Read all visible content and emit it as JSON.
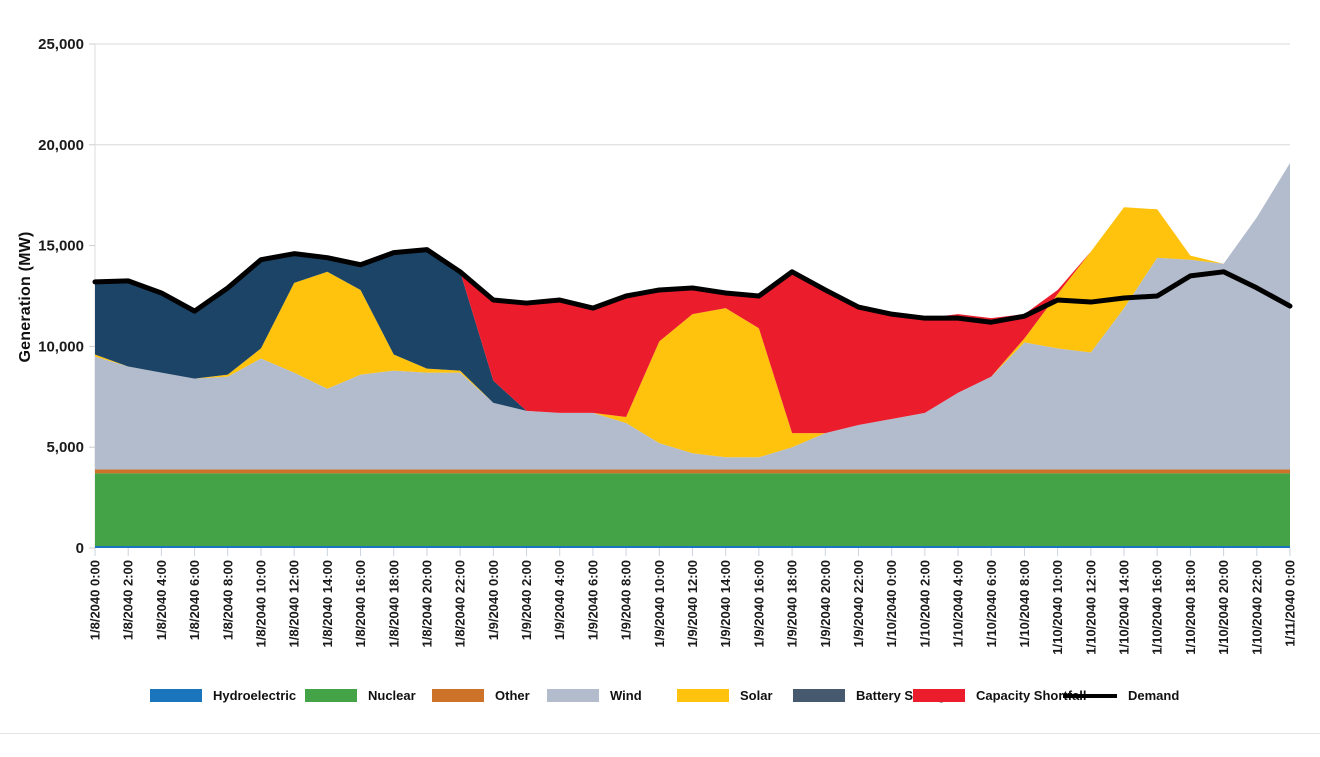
{
  "chart_data": {
    "type": "area",
    "stacked": true,
    "title": "",
    "xlabel": "",
    "ylabel": "Generation (MW)",
    "ylim": [
      0,
      25000
    ],
    "ytick_labels": [
      "0",
      "5,000",
      "10,000",
      "15,000",
      "20,000",
      "25,000"
    ],
    "grid": "horizontal-top-only",
    "legend_position": "bottom",
    "x_labels": [
      "1/8/2040 0:00",
      "1/8/2040 2:00",
      "1/8/2040 4:00",
      "1/8/2040 6:00",
      "1/8/2040 8:00",
      "1/8/2040 10:00",
      "1/8/2040 12:00",
      "1/8/2040 14:00",
      "1/8/2040 16:00",
      "1/8/2040 18:00",
      "1/8/2040 20:00",
      "1/8/2040 22:00",
      "1/9/2040 0:00",
      "1/9/2040 2:00",
      "1/9/2040 4:00",
      "1/9/2040 6:00",
      "1/9/2040 8:00",
      "1/9/2040 10:00",
      "1/9/2040 12:00",
      "1/9/2040 14:00",
      "1/9/2040 16:00",
      "1/9/2040 18:00",
      "1/9/2040 20:00",
      "1/9/2040 22:00",
      "1/10/2040 0:00",
      "1/10/2040 2:00",
      "1/10/2040 4:00",
      "1/10/2040 6:00",
      "1/10/2040 8:00",
      "1/10/2040 10:00",
      "1/10/2040 12:00",
      "1/10/2040 14:00",
      "1/10/2040 16:00",
      "1/10/2040 18:00",
      "1/10/2040 20:00",
      "1/10/2040 22:00",
      "1/11/2040 0:00"
    ],
    "series": [
      {
        "name": "Hydroelectric",
        "color": "#1B75BC",
        "values": [
          100,
          100,
          100,
          100,
          100,
          100,
          100,
          100,
          100,
          100,
          100,
          100,
          100,
          100,
          100,
          100,
          100,
          100,
          100,
          100,
          100,
          100,
          100,
          100,
          100,
          100,
          100,
          100,
          100,
          100,
          100,
          100,
          100,
          100,
          100,
          100,
          100
        ]
      },
      {
        "name": "Nuclear",
        "color": "#44A346",
        "values": [
          3600,
          3600,
          3600,
          3600,
          3600,
          3600,
          3600,
          3600,
          3600,
          3600,
          3600,
          3600,
          3600,
          3600,
          3600,
          3600,
          3600,
          3600,
          3600,
          3600,
          3600,
          3600,
          3600,
          3600,
          3600,
          3600,
          3600,
          3600,
          3600,
          3600,
          3600,
          3600,
          3600,
          3600,
          3600,
          3600,
          3600
        ]
      },
      {
        "name": "Other",
        "color": "#CC7229",
        "values": [
          200,
          200,
          200,
          200,
          200,
          200,
          200,
          200,
          200,
          200,
          200,
          200,
          200,
          200,
          200,
          200,
          200,
          200,
          200,
          200,
          200,
          200,
          200,
          200,
          200,
          200,
          200,
          200,
          200,
          200,
          200,
          200,
          200,
          200,
          200,
          200,
          200
        ]
      },
      {
        "name": "Wind",
        "color": "#B2BCCD",
        "values": [
          5600,
          5100,
          4800,
          4500,
          4600,
          5500,
          4800,
          4000,
          4700,
          4900,
          4800,
          4800,
          3300,
          2900,
          2800,
          2800,
          2300,
          1300,
          800,
          600,
          600,
          1100,
          1800,
          2200,
          2500,
          2800,
          3800,
          4600,
          6300,
          6000,
          5800,
          8000,
          10500,
          10400,
          10200,
          12500,
          15200
        ]
      },
      {
        "name": "Solar",
        "color": "#FFC20D",
        "values": [
          100,
          0,
          0,
          0,
          100,
          500,
          4450,
          5800,
          4200,
          800,
          200,
          100,
          0,
          0,
          0,
          0,
          300,
          5050,
          6900,
          7400,
          6400,
          700,
          0,
          0,
          0,
          0,
          0,
          0,
          200,
          2700,
          5000,
          5000,
          2400,
          200,
          0,
          0,
          0
        ]
      },
      {
        "name": "Battery Storage",
        "color": "#1C4466",
        "legend_color": "#47596F",
        "values": [
          3600,
          4250,
          3950,
          3350,
          4300,
          4400,
          1450,
          700,
          1250,
          5050,
          5900,
          4900,
          1100,
          0,
          0,
          0,
          0,
          0,
          0,
          0,
          0,
          0,
          0,
          0,
          0,
          0,
          0,
          0,
          0,
          0,
          0,
          0,
          0,
          0,
          0,
          0,
          0
        ]
      },
      {
        "name": "Capacity Shortfall",
        "color": "#EB1C2C",
        "values": [
          0,
          0,
          0,
          0,
          0,
          0,
          0,
          0,
          0,
          0,
          0,
          0,
          4000,
          5350,
          5600,
          5200,
          6000,
          2550,
          1300,
          750,
          1600,
          8000,
          7100,
          5850,
          5200,
          4700,
          3900,
          2900,
          1200,
          200,
          0,
          0,
          0,
          0,
          0,
          0,
          0
        ]
      }
    ],
    "line_series": {
      "name": "Demand",
      "color": "#000000",
      "values": [
        13200,
        13250,
        12650,
        11750,
        12900,
        14300,
        14600,
        14400,
        14050,
        14650,
        14800,
        13700,
        12300,
        12150,
        12300,
        11900,
        12500,
        12800,
        12900,
        12650,
        12500,
        13700,
        12800,
        11950,
        11600,
        11400,
        11400,
        11200,
        11500,
        12300,
        12200,
        12400,
        12500,
        13500,
        13700,
        12900,
        12000
      ]
    }
  }
}
